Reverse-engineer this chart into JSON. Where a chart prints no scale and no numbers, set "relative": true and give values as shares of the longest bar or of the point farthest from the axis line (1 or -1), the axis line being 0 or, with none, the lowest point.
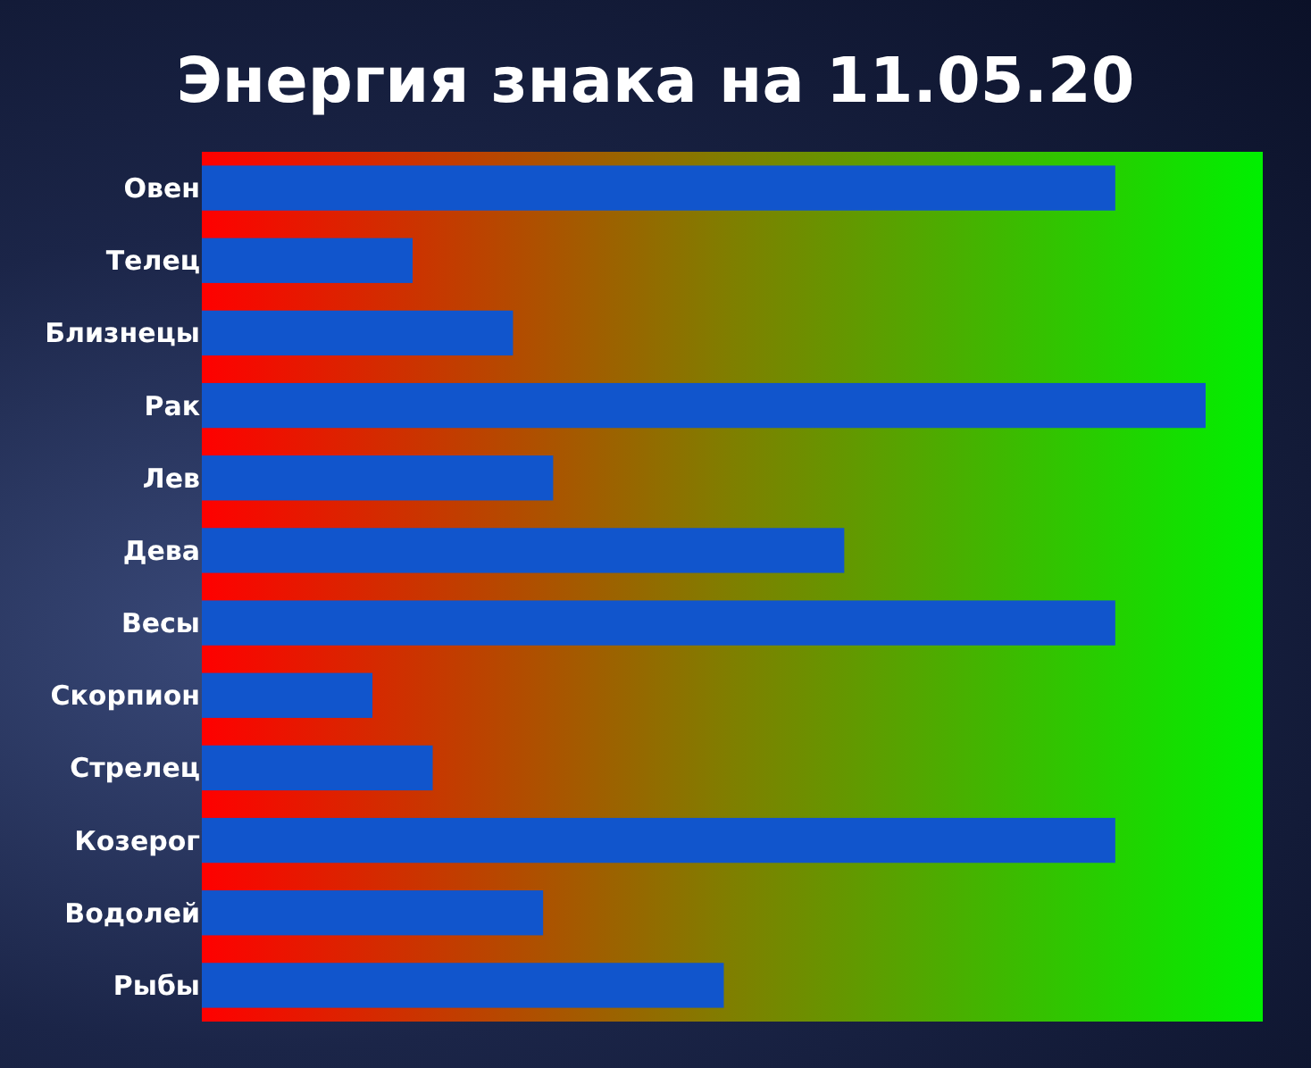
{
  "chart_data": {
    "type": "bar",
    "title": "Энергия знака на 11.05.20",
    "orientation": "horizontal",
    "relative": true,
    "categories": [
      "Овен",
      "Телец",
      "Близнецы",
      "Рак",
      "Лев",
      "Дева",
      "Весы",
      "Скорпион",
      "Стрелец",
      "Козерог",
      "Водолей",
      "Рыбы"
    ],
    "values": [
      0.91,
      0.21,
      0.31,
      1,
      0.35,
      0.64,
      0.91,
      0.17,
      0.23,
      0.91,
      0.34,
      0.52
    ],
    "color": "#1155cc"
  }
}
